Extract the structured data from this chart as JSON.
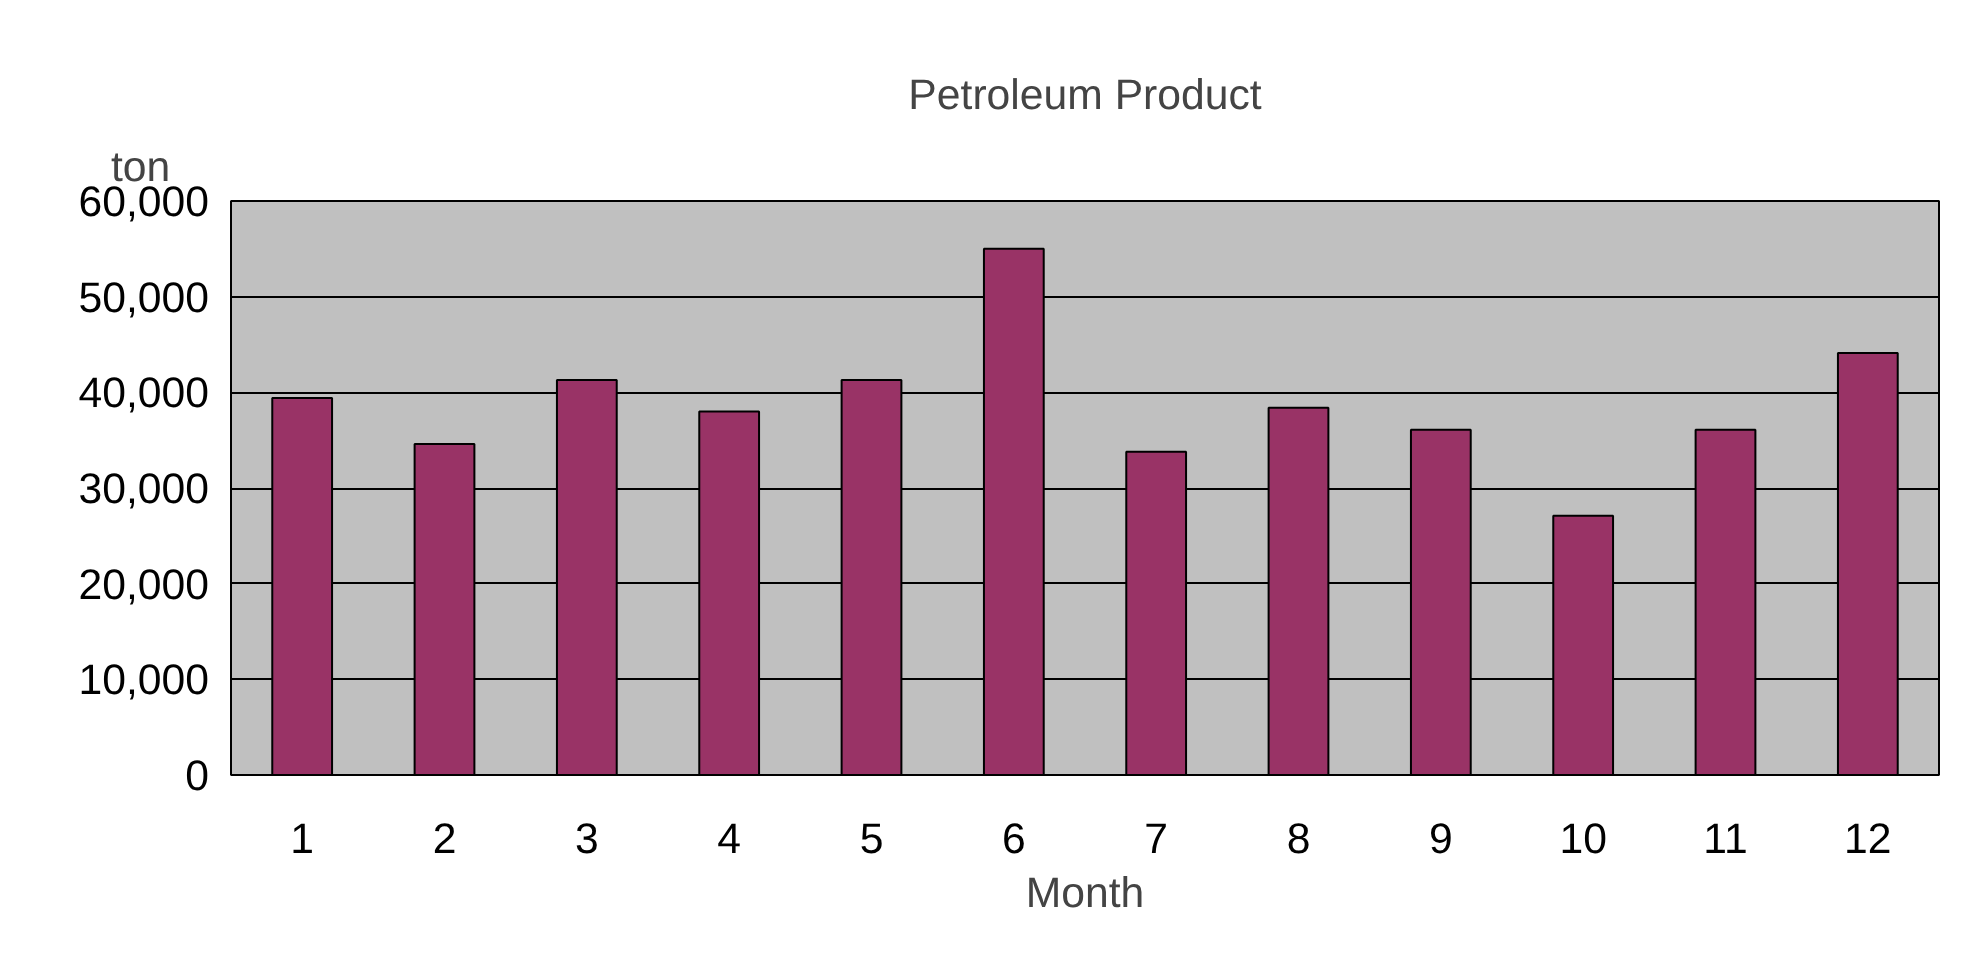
{
  "chart_data": {
    "type": "bar",
    "title": "Petroleum Product",
    "xlabel": "Month",
    "ylabel": "ton",
    "x": [
      1,
      2,
      3,
      4,
      5,
      6,
      7,
      8,
      9,
      10,
      11,
      12
    ],
    "xlim": [
      0.5,
      12.5
    ],
    "xticks": [
      1,
      2,
      3,
      4,
      5,
      6,
      7,
      8,
      9,
      10,
      11,
      12
    ],
    "values": [
      39400,
      34600,
      41300,
      38000,
      41300,
      55000,
      33800,
      38400,
      36100,
      27100,
      36100,
      44100
    ],
    "color": "#993366",
    "ylim": [
      0,
      60000
    ],
    "yticks": [
      {
        "value": 0,
        "label": "0"
      },
      {
        "value": 10000,
        "label": "10,000"
      },
      {
        "value": 20000,
        "label": "20,000"
      },
      {
        "value": 30000,
        "label": "30,000"
      },
      {
        "value": 40000,
        "label": "40,000"
      },
      {
        "value": 50000,
        "label": "50,000"
      },
      {
        "value": 60000,
        "label": "60,000"
      }
    ],
    "grid": "y"
  }
}
